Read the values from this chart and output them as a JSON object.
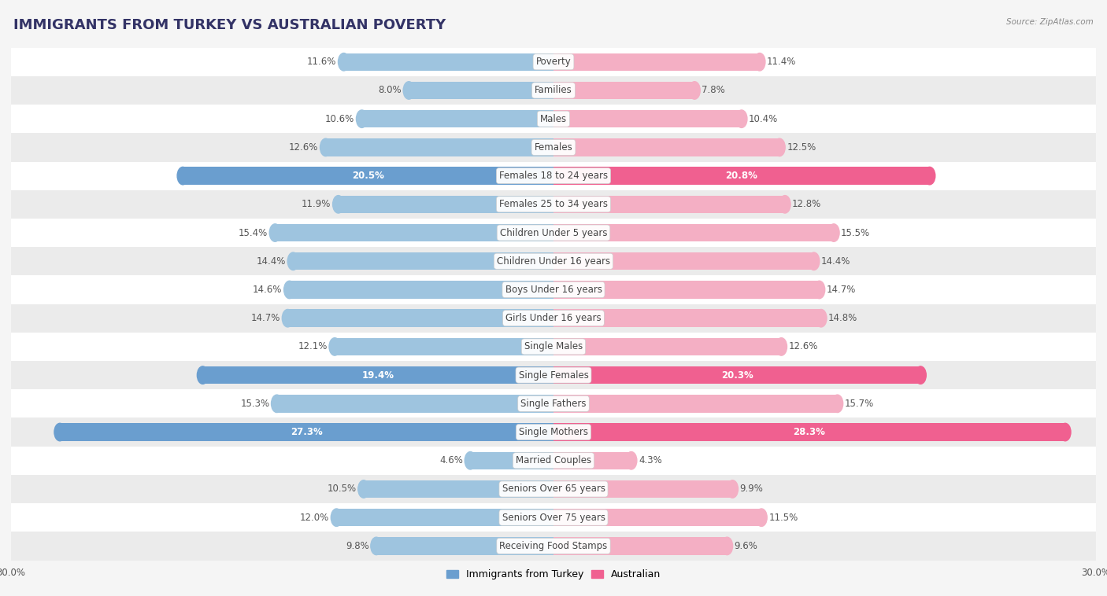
{
  "title": "IMMIGRANTS FROM TURKEY VS AUSTRALIAN POVERTY",
  "source": "Source: ZipAtlas.com",
  "categories": [
    "Poverty",
    "Families",
    "Males",
    "Females",
    "Females 18 to 24 years",
    "Females 25 to 34 years",
    "Children Under 5 years",
    "Children Under 16 years",
    "Boys Under 16 years",
    "Girls Under 16 years",
    "Single Males",
    "Single Females",
    "Single Fathers",
    "Single Mothers",
    "Married Couples",
    "Seniors Over 65 years",
    "Seniors Over 75 years",
    "Receiving Food Stamps"
  ],
  "left_values": [
    11.6,
    8.0,
    10.6,
    12.6,
    20.5,
    11.9,
    15.4,
    14.4,
    14.6,
    14.7,
    12.1,
    19.4,
    15.3,
    27.3,
    4.6,
    10.5,
    12.0,
    9.8
  ],
  "right_values": [
    11.4,
    7.8,
    10.4,
    12.5,
    20.8,
    12.8,
    15.5,
    14.4,
    14.7,
    14.8,
    12.6,
    20.3,
    15.7,
    28.3,
    4.3,
    9.9,
    11.5,
    9.6
  ],
  "left_color": "#9ec4df",
  "right_color": "#f4afc4",
  "left_highlight_color": "#6a9ecf",
  "right_highlight_color": "#f06090",
  "highlight_rows": [
    4,
    11,
    13
  ],
  "left_label": "Immigrants from Turkey",
  "right_label": "Australian",
  "xlim": 30.0,
  "bar_height": 0.62,
  "background_color": "#f5f5f5",
  "row_bg_colors": [
    "#ffffff",
    "#ebebeb"
  ],
  "title_fontsize": 13,
  "label_fontsize": 8.5,
  "value_fontsize": 8.5,
  "axis_fontsize": 8.5
}
